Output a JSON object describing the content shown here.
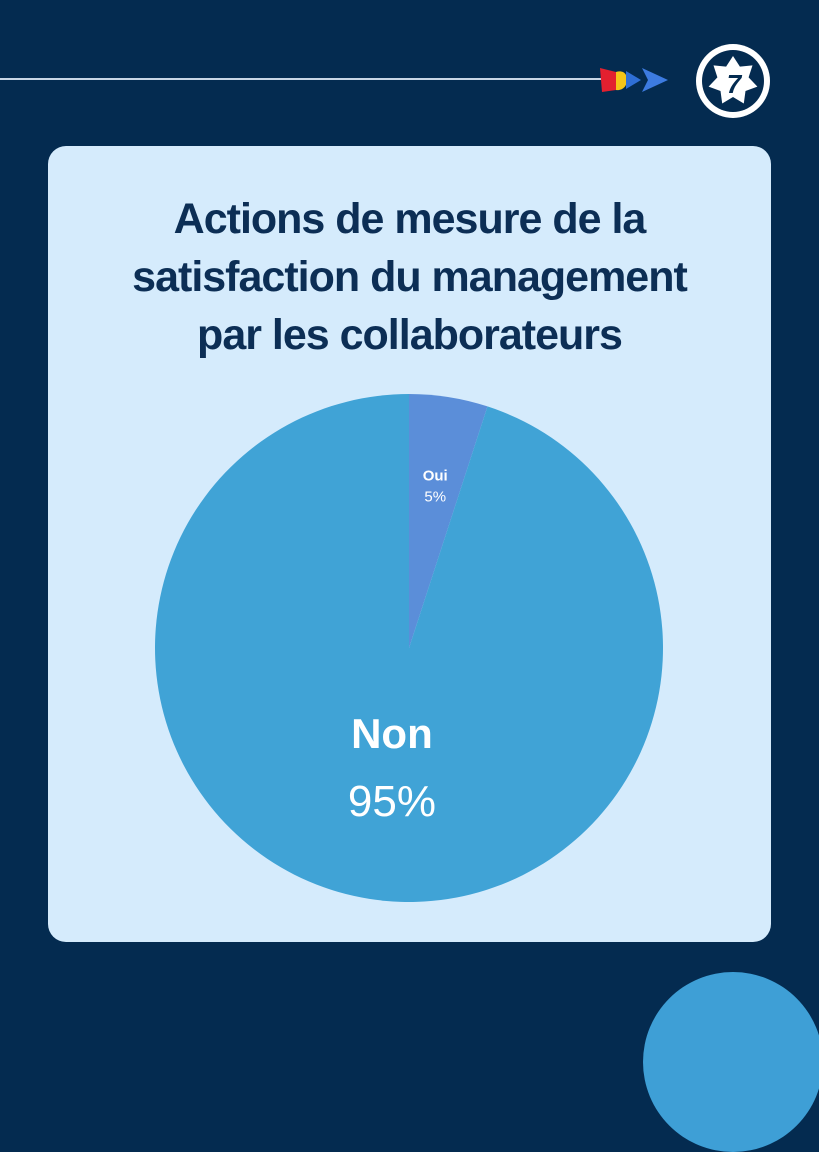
{
  "header": {
    "badge_number": "7",
    "colors": {
      "background": "#042b50",
      "card": "#d5ebfc",
      "title": "#0c2e55"
    }
  },
  "chart_data": {
    "type": "pie",
    "title": "Actions de mesure de la satisfaction du management par les collaborateurs",
    "title_lines": [
      "Actions de mesure de la",
      "satisfaction du management",
      "par les collaborateurs"
    ],
    "slices": [
      {
        "label": "Oui",
        "value": 5,
        "value_label": "5%",
        "color": "#5b8ed9"
      },
      {
        "label": "Non",
        "value": 95,
        "value_label": "95%",
        "color": "#40a3d6"
      }
    ]
  }
}
